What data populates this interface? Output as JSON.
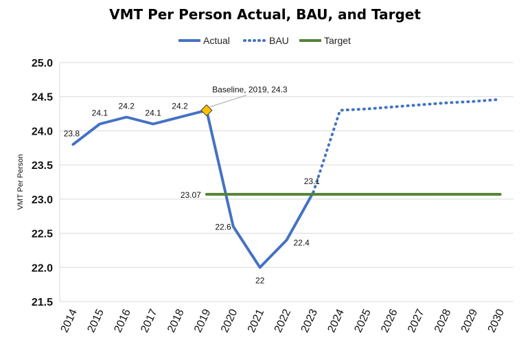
{
  "chart_data": {
    "type": "line",
    "title": "VMT Per Person Actual, BAU, and Target",
    "ylabel": "VMT Per Person",
    "xlabel": "",
    "ylim": [
      21.5,
      25.0
    ],
    "yticks": [
      "25.0",
      "24.5",
      "24.0",
      "23.5",
      "23.0",
      "22.5",
      "22.0",
      "21.5"
    ],
    "categories": [
      "2014",
      "2015",
      "2016",
      "2017",
      "2018",
      "2019",
      "2020",
      "2021",
      "2022",
      "2023",
      "2024",
      "2025",
      "2026",
      "2027",
      "2028",
      "2029",
      "2030"
    ],
    "grid": "horizontal",
    "legend_position": "top",
    "series": [
      {
        "name": "Actual",
        "style": "solid",
        "color": "#4472C4",
        "x": [
          "2014",
          "2015",
          "2016",
          "2017",
          "2018",
          "2019",
          "2020",
          "2021",
          "2022",
          "2023"
        ],
        "values": [
          23.8,
          24.1,
          24.2,
          24.1,
          24.2,
          24.3,
          22.6,
          22.0,
          22.4,
          23.1
        ],
        "labels": [
          "23.8",
          "24.1",
          "24.2",
          "24.1",
          "24.2",
          "",
          "22.6",
          "22",
          "22.4",
          "23.1"
        ]
      },
      {
        "name": "BAU",
        "style": "dotted",
        "color": "#4472C4",
        "x": [
          "2023",
          "2024",
          "2025",
          "2026",
          "2027",
          "2028",
          "2029",
          "2030"
        ],
        "values": [
          23.1,
          24.3,
          24.32,
          24.35,
          24.38,
          24.41,
          24.43,
          24.46
        ]
      },
      {
        "name": "Target",
        "style": "solid",
        "color": "#548235",
        "x": [
          "2019",
          "2030"
        ],
        "values": [
          23.07,
          23.07
        ],
        "labels": [
          "23.07"
        ]
      }
    ],
    "annotations": [
      {
        "text": "Baseline, 2019, 24.3",
        "x": "2019",
        "y": 24.3,
        "marker": "diamond",
        "marker_color": "#FFC000"
      }
    ]
  }
}
